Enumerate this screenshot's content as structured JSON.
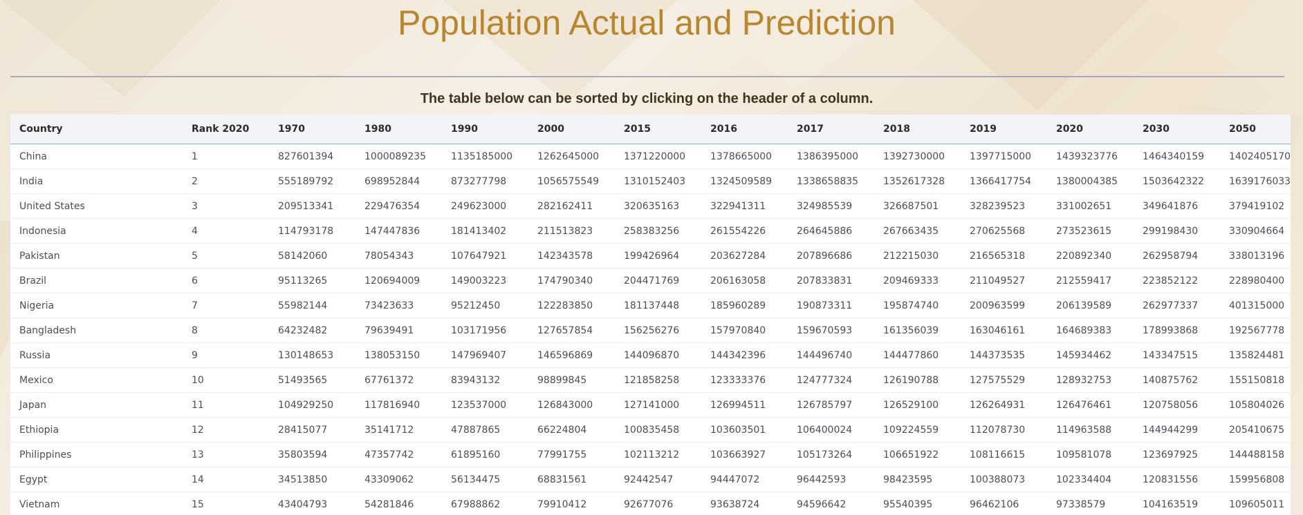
{
  "page": {
    "title": "Population Actual and Prediction",
    "subtitle": "The table below can be sorted by clicking on the header of a column."
  },
  "colors": {
    "title": "#b8862e",
    "divider": "#a9a6bf",
    "header_underline": "#7fb3e6"
  },
  "table": {
    "headers": [
      "Country",
      "Rank 2020",
      "1970",
      "1980",
      "1990",
      "2000",
      "2015",
      "2016",
      "2017",
      "2018",
      "2019",
      "2020",
      "2030",
      "2050"
    ],
    "rows": [
      [
        "China",
        "1",
        "827601394",
        "1000089235",
        "1135185000",
        "1262645000",
        "1371220000",
        "1378665000",
        "1386395000",
        "1392730000",
        "1397715000",
        "1439323776",
        "1464340159",
        "1402405170"
      ],
      [
        "India",
        "2",
        "555189792",
        "698952844",
        "873277798",
        "1056575549",
        "1310152403",
        "1324509589",
        "1338658835",
        "1352617328",
        "1366417754",
        "1380004385",
        "1503642322",
        "1639176033"
      ],
      [
        "United States",
        "3",
        "209513341",
        "229476354",
        "249623000",
        "282162411",
        "320635163",
        "322941311",
        "324985539",
        "326687501",
        "328239523",
        "331002651",
        "349641876",
        "379419102"
      ],
      [
        "Indonesia",
        "4",
        "114793178",
        "147447836",
        "181413402",
        "211513823",
        "258383256",
        "261554226",
        "264645886",
        "267663435",
        "270625568",
        "273523615",
        "299198430",
        "330904664"
      ],
      [
        "Pakistan",
        "5",
        "58142060",
        "78054343",
        "107647921",
        "142343578",
        "199426964",
        "203627284",
        "207896686",
        "212215030",
        "216565318",
        "220892340",
        "262958794",
        "338013196"
      ],
      [
        "Brazil",
        "6",
        "95113265",
        "120694009",
        "149003223",
        "174790340",
        "204471769",
        "206163058",
        "207833831",
        "209469333",
        "211049527",
        "212559417",
        "223852122",
        "228980400"
      ],
      [
        "Nigeria",
        "7",
        "55982144",
        "73423633",
        "95212450",
        "122283850",
        "181137448",
        "185960289",
        "190873311",
        "195874740",
        "200963599",
        "206139589",
        "262977337",
        "401315000"
      ],
      [
        "Bangladesh",
        "8",
        "64232482",
        "79639491",
        "103171956",
        "127657854",
        "156256276",
        "157970840",
        "159670593",
        "161356039",
        "163046161",
        "164689383",
        "178993868",
        "192567778"
      ],
      [
        "Russia",
        "9",
        "130148653",
        "138053150",
        "147969407",
        "146596869",
        "144096870",
        "144342396",
        "144496740",
        "144477860",
        "144373535",
        "145934462",
        "143347515",
        "135824481"
      ],
      [
        "Mexico",
        "10",
        "51493565",
        "67761372",
        "83943132",
        "98899845",
        "121858258",
        "123333376",
        "124777324",
        "126190788",
        "127575529",
        "128932753",
        "140875762",
        "155150818"
      ],
      [
        "Japan",
        "11",
        "104929250",
        "117816940",
        "123537000",
        "126843000",
        "127141000",
        "126994511",
        "126785797",
        "126529100",
        "126264931",
        "126476461",
        "120758056",
        "105804026"
      ],
      [
        "Ethiopia",
        "12",
        "28415077",
        "35141712",
        "47887865",
        "66224804",
        "100835458",
        "103603501",
        "106400024",
        "109224559",
        "112078730",
        "114963588",
        "144944299",
        "205410675"
      ],
      [
        "Philippines",
        "13",
        "35803594",
        "47357742",
        "61895160",
        "77991755",
        "102113212",
        "103663927",
        "105173264",
        "106651922",
        "108116615",
        "109581078",
        "123697925",
        "144488158"
      ],
      [
        "Egypt",
        "14",
        "34513850",
        "43309062",
        "56134475",
        "68831561",
        "92442547",
        "94447072",
        "96442593",
        "98423595",
        "100388073",
        "102334404",
        "120831556",
        "159956808"
      ],
      [
        "Vietnam",
        "15",
        "43404793",
        "54281846",
        "67988862",
        "79910412",
        "92677076",
        "93638724",
        "94596642",
        "95540395",
        "96462106",
        "97338579",
        "104163519",
        "109605011"
      ]
    ]
  }
}
